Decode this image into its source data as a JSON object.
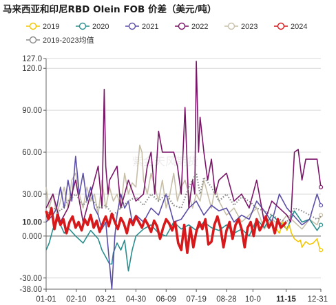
{
  "chart_data": {
    "type": "line",
    "title": "马来西亚和印尼RBD Olein FOB 价差（美元/吨）",
    "xlabel": "",
    "ylabel": "",
    "ylim": [
      -38,
      127
    ],
    "y_ticks": [
      "127.0",
      "120.0",
      "90.00",
      "60.00",
      "30.00",
      "10.00",
      "0.000",
      "-30.00",
      "-38.00"
    ],
    "y_tick_values": [
      127,
      120,
      90,
      60,
      30,
      10,
      0,
      -30,
      -38
    ],
    "highlight_y": "10.00",
    "x_ticks": [
      "01-01",
      "02-10",
      "03-21",
      "04-30",
      "06-09",
      "07-19",
      "08-28",
      "10-0",
      "11-15",
      "12-31"
    ],
    "x_tick_days": [
      1,
      41,
      80,
      120,
      160,
      200,
      240,
      275,
      319,
      365
    ],
    "highlight_x": "11-15",
    "legend_position": "top",
    "watermark": "紫金天风期货",
    "colors": {
      "2019": "#f2c500",
      "2020": "#2a8d8d",
      "2021": "#5b4ea8",
      "2022": "#7a1468",
      "2023": "#c8bfa8",
      "2024": "#d7191c",
      "avg": "#888888"
    },
    "series": [
      {
        "name": "2019",
        "style": "line",
        "x": [
          305,
          310,
          315,
          320,
          323,
          326,
          330,
          335,
          338,
          340,
          345,
          350,
          355,
          360,
          363,
          365
        ],
        "y": [
          6,
          2,
          10,
          4,
          8,
          2,
          -2,
          -4,
          -3,
          -8,
          -4,
          -6,
          -5,
          -2,
          -8,
          -10
        ]
      },
      {
        "name": "2020",
        "style": "line",
        "x": [
          1,
          5,
          10,
          15,
          20,
          25,
          30,
          40,
          50,
          60,
          70,
          75,
          80,
          85,
          88,
          90,
          95,
          100,
          105,
          110,
          115,
          120,
          130,
          140,
          150,
          160,
          170,
          180,
          190,
          200,
          210,
          220,
          230,
          240,
          250,
          260,
          270,
          280,
          290,
          300,
          310,
          320,
          330,
          340,
          350,
          360,
          365
        ],
        "y": [
          -10,
          -5,
          5,
          12,
          8,
          2,
          6,
          0,
          -5,
          4,
          -2,
          -10,
          -15,
          -20,
          -20,
          -12,
          -5,
          -10,
          -3,
          -25,
          -10,
          0,
          5,
          8,
          2,
          0,
          10,
          5,
          8,
          4,
          10,
          6,
          4,
          8,
          2,
          5,
          0,
          12,
          6,
          15,
          10,
          5,
          18,
          10,
          12,
          4,
          8
        ]
      },
      {
        "name": "2021",
        "style": "line",
        "x": [
          1,
          10,
          15,
          20,
          25,
          30,
          35,
          40,
          45,
          50,
          55,
          60,
          65,
          70,
          75,
          80,
          85,
          88,
          92,
          95,
          100,
          105,
          110,
          115,
          120,
          130,
          140,
          150,
          160,
          170,
          180,
          190,
          200,
          210,
          220,
          230,
          240,
          250,
          260,
          270,
          280,
          290,
          300,
          310,
          320,
          330,
          340,
          350,
          360,
          365
        ],
        "y": [
          10,
          15,
          20,
          35,
          20,
          40,
          25,
          57,
          30,
          45,
          25,
          35,
          20,
          15,
          5,
          10,
          -20,
          -38,
          0,
          15,
          30,
          20,
          25,
          10,
          15,
          10,
          20,
          15,
          30,
          10,
          12,
          20,
          25,
          15,
          22,
          18,
          20,
          10,
          15,
          12,
          25,
          18,
          10,
          30,
          20,
          14,
          8,
          12,
          30,
          22
        ]
      },
      {
        "name": "2022",
        "style": "line",
        "x": [
          1,
          10,
          20,
          30,
          40,
          50,
          60,
          70,
          75,
          78,
          80,
          83,
          85,
          90,
          95,
          100,
          110,
          120,
          130,
          135,
          140,
          145,
          150,
          155,
          160,
          170,
          175,
          180,
          185,
          190,
          195,
          198,
          200,
          203,
          205,
          210,
          215,
          220,
          225,
          230,
          240,
          250,
          260,
          270,
          280,
          290,
          300,
          310,
          320,
          325,
          330,
          335,
          340,
          345,
          350,
          355,
          360,
          365
        ],
        "y": [
          20,
          30,
          10,
          20,
          40,
          10,
          30,
          50,
          20,
          105,
          50,
          30,
          40,
          45,
          50,
          20,
          40,
          25,
          30,
          50,
          60,
          30,
          75,
          60,
          60,
          60,
          50,
          30,
          92,
          20,
          40,
          30,
          125,
          60,
          85,
          60,
          40,
          55,
          30,
          40,
          45,
          25,
          30,
          20,
          40,
          10,
          25,
          20,
          15,
          10,
          60,
          62,
          40,
          55,
          55,
          55,
          55,
          35
        ]
      },
      {
        "name": "2023",
        "style": "line",
        "x": [
          1,
          5,
          10,
          15,
          20,
          25,
          30,
          35,
          40,
          45,
          50,
          55,
          60,
          65,
          70,
          75,
          80,
          85,
          90,
          95,
          100,
          105,
          110,
          115,
          120,
          125,
          128,
          130,
          135,
          140,
          145,
          150,
          155,
          160,
          165,
          170,
          175,
          180,
          185,
          190,
          195,
          200,
          205,
          210,
          215,
          220,
          225,
          230,
          240,
          250,
          260,
          270,
          280,
          290,
          300,
          310,
          320,
          330,
          340,
          350,
          360,
          365
        ],
        "y": [
          35,
          20,
          30,
          15,
          25,
          35,
          20,
          40,
          45,
          30,
          20,
          35,
          25,
          30,
          15,
          40,
          20,
          35,
          25,
          30,
          20,
          45,
          30,
          38,
          35,
          65,
          60,
          40,
          30,
          45,
          35,
          25,
          40,
          20,
          30,
          45,
          25,
          35,
          40,
          30,
          20,
          30,
          25,
          40,
          30,
          20,
          35,
          25,
          15,
          20,
          10,
          15,
          20,
          5,
          12,
          8,
          15,
          10,
          5,
          12,
          8,
          15
        ]
      },
      {
        "name": "2024",
        "style": "line",
        "highlight": true,
        "x": [
          1,
          4,
          8,
          12,
          16,
          20,
          24,
          28,
          32,
          36,
          40,
          44,
          48,
          52,
          56,
          60,
          64,
          68,
          72,
          76,
          80,
          84,
          88,
          92,
          96,
          100,
          104,
          108,
          112,
          116,
          120,
          124,
          128,
          132,
          136,
          140,
          144,
          148,
          152,
          156,
          160,
          164,
          168,
          172,
          176,
          180,
          184,
          188,
          192,
          196,
          200,
          204,
          208,
          212,
          216,
          220,
          224,
          228,
          232,
          236,
          240,
          244,
          248,
          252,
          256,
          260,
          264,
          268,
          272,
          276,
          280,
          284,
          288,
          292,
          296,
          300,
          304,
          308,
          312,
          316,
          319
        ],
        "y": [
          18,
          12,
          20,
          5,
          15,
          8,
          12,
          2,
          10,
          14,
          6,
          10,
          4,
          12,
          8,
          15,
          6,
          11,
          3,
          9,
          14,
          7,
          16,
          10,
          5,
          13,
          9,
          2,
          12,
          8,
          14,
          10,
          6,
          12,
          8,
          3,
          11,
          7,
          -2,
          6,
          12,
          9,
          4,
          10,
          -5,
          -10,
          8,
          -12,
          6,
          -8,
          3,
          10,
          5,
          12,
          -6,
          -4,
          8,
          14,
          6,
          -8,
          4,
          10,
          -2,
          8,
          12,
          5,
          -8,
          6,
          10,
          0,
          12,
          4,
          8,
          14,
          6,
          10,
          2,
          12,
          6,
          8,
          10
        ]
      },
      {
        "name": "2019-2023均值",
        "style": "dotted",
        "x": [
          1,
          10,
          20,
          30,
          40,
          50,
          60,
          70,
          80,
          90,
          100,
          110,
          120,
          130,
          140,
          150,
          160,
          170,
          180,
          190,
          200,
          205,
          210,
          220,
          230,
          240,
          250,
          260,
          270,
          280,
          290,
          300,
          310,
          320,
          330,
          340,
          350,
          360,
          365
        ],
        "y": [
          15,
          20,
          18,
          25,
          30,
          22,
          28,
          20,
          22,
          15,
          20,
          25,
          28,
          22,
          30,
          25,
          30,
          22,
          20,
          35,
          45,
          30,
          42,
          35,
          25,
          30,
          22,
          28,
          25,
          20,
          18,
          15,
          12,
          10,
          20,
          18,
          15,
          12,
          14
        ]
      }
    ]
  }
}
